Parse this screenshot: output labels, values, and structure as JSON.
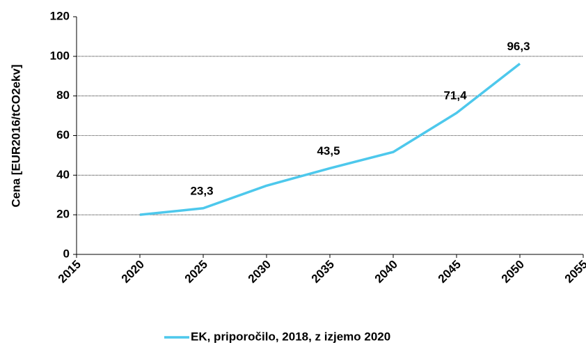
{
  "chart_data": {
    "type": "line",
    "y_label": "Cena [EUR2016/tCO2ekv]",
    "x": [
      2020,
      2025,
      2030,
      2035,
      2040,
      2045,
      2050
    ],
    "series": [
      {
        "name": "EK, priporočilo, 2018, z izjemo 2020",
        "color": "#4dc8ec",
        "values": [
          20,
          23.3,
          34.7,
          43.5,
          51.7,
          71.4,
          96.3
        ],
        "value_labels": [
          null,
          "23,3",
          null,
          "43,5",
          null,
          "71,4",
          "96,3"
        ]
      }
    ],
    "xlim": [
      2015,
      2055
    ],
    "xticks": [
      2015,
      2020,
      2025,
      2030,
      2035,
      2040,
      2045,
      2050,
      2055
    ],
    "ylim": [
      0,
      120
    ],
    "yticks": [
      0,
      20,
      40,
      60,
      80,
      100,
      120
    ],
    "grid": true,
    "legend": "bottom"
  }
}
